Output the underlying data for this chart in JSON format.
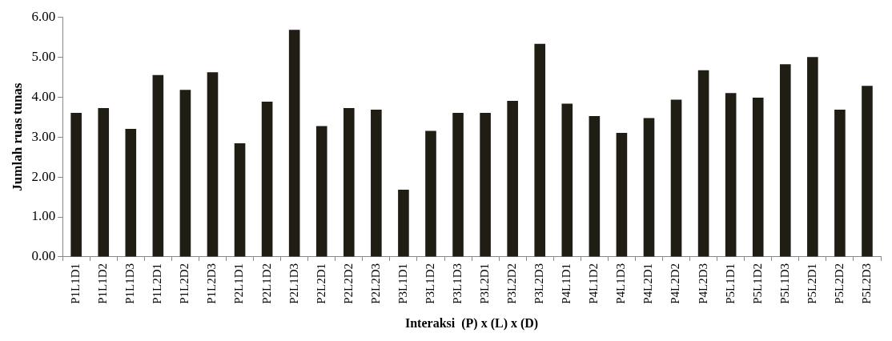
{
  "chart_data": {
    "type": "bar",
    "xlabel": "Interaksi  (P) x (L) x (D)",
    "ylabel": "Jumlah ruas tunas",
    "categories": [
      "P1L1D1",
      "P1L1D2",
      "P1L1D3",
      "P1L2D1",
      "P1L2D2",
      "P1L2D3",
      "P2L1D1",
      "P2L1D2",
      "P2L1D3",
      "P2L2D1",
      "P2L2D2",
      "P2L2D3",
      "P3L1D1",
      "P3L1D2",
      "P3L1D3",
      "P3L2D1",
      "P3L2D2",
      "P3L2D3",
      "P4L1D1",
      "P4L1D2",
      "P4L1D3",
      "P4L2D1",
      "P4L2D2",
      "P4L2D3",
      "P5L1D1",
      "P5L1D2",
      "P5L1D3",
      "P5L2D1",
      "P5L2D2",
      "P5L2D3"
    ],
    "values": [
      3.6,
      3.72,
      3.2,
      4.55,
      4.18,
      4.62,
      2.84,
      3.88,
      5.68,
      3.27,
      3.72,
      3.68,
      1.68,
      3.15,
      3.6,
      3.6,
      3.9,
      5.33,
      3.83,
      3.52,
      3.1,
      3.47,
      3.93,
      4.67,
      4.1,
      3.98,
      4.82,
      5.0,
      3.68,
      4.28
    ],
    "color": "#201e14",
    "ylim": [
      0,
      6
    ],
    "yticks": [
      {
        "value": 0,
        "label": "0.00"
      },
      {
        "value": 1,
        "label": "1.00"
      },
      {
        "value": 2,
        "label": "2.00"
      },
      {
        "value": 3,
        "label": "3.00"
      },
      {
        "value": 4,
        "label": "4.00"
      },
      {
        "value": 5,
        "label": "5.00"
      },
      {
        "value": 6,
        "label": "6.00"
      }
    ],
    "grid": false,
    "legend": false
  }
}
